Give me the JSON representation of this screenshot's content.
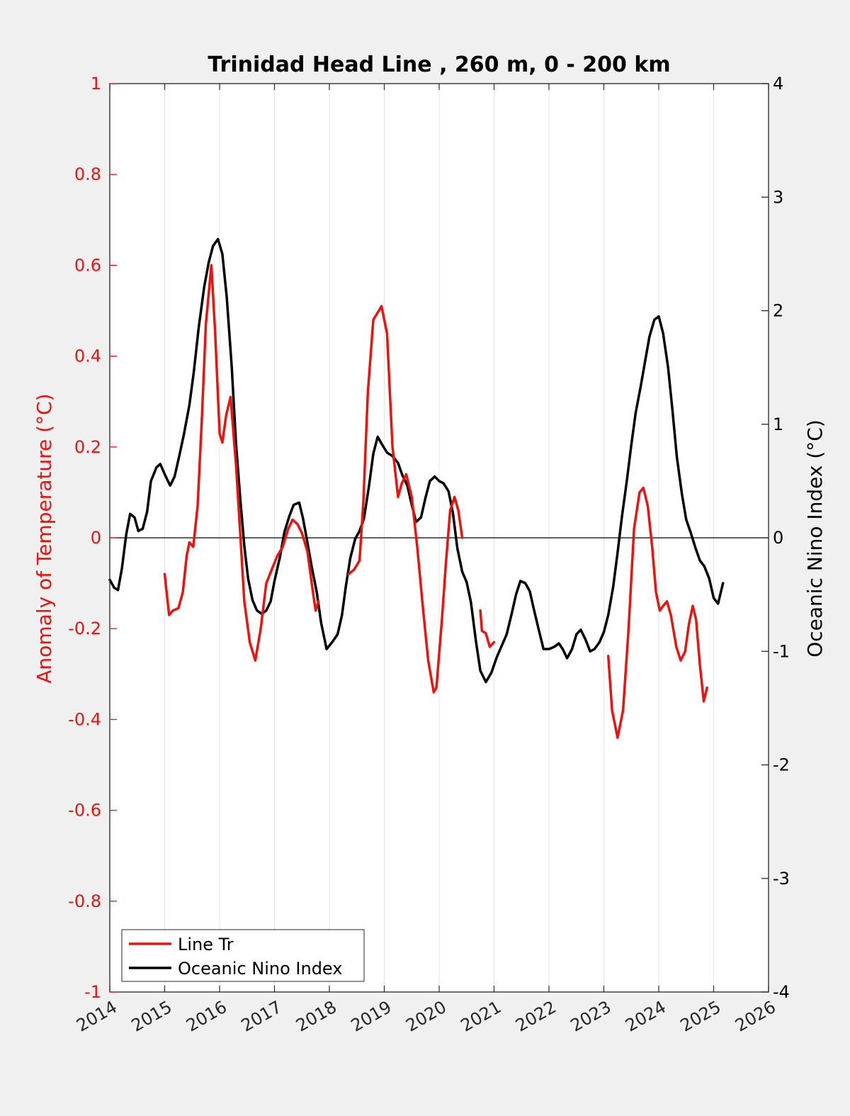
{
  "chart_data": {
    "type": "line",
    "title": "Trinidad Head Line , 260 m, 0 - 200 km",
    "ylabel_left": "Anomaly of Temperature (°C)",
    "ylabel_right": "Oceanic Nino Index (°C)",
    "xlabel": "",
    "xlim": [
      2014,
      2026
    ],
    "ylim_left": [
      -1,
      1
    ],
    "ylim_right": [
      -4,
      4
    ],
    "x_ticks": [
      "2014",
      "2015",
      "2016",
      "2017",
      "2018",
      "2019",
      "2020",
      "2021",
      "2022",
      "2023",
      "2024",
      "2025",
      "2026"
    ],
    "y_ticks_left": [
      "1",
      "0.8",
      "0.6",
      "0.4",
      "0.2",
      "0",
      "-0.2",
      "-0.4",
      "-0.6",
      "-0.8",
      "-1"
    ],
    "y_ticks_right": [
      "4",
      "3",
      "2",
      "1",
      "0",
      "-1",
      "-2",
      "-3",
      "-4"
    ],
    "grid": "vertical",
    "zero_line": true,
    "legend_position": "bottom-left",
    "colors": {
      "line_tr": "#e8140f",
      "oni": "#000000",
      "left_axis": "#e8140f",
      "right_axis": "#000000"
    },
    "series": [
      {
        "name": "Line Tr",
        "axis": "left",
        "color": "#e8140f",
        "segments": [
          [
            [
              2015.0,
              -0.08
            ],
            [
              2015.08,
              -0.17
            ],
            [
              2015.15,
              -0.16
            ],
            [
              2015.25,
              -0.155
            ],
            [
              2015.33,
              -0.12
            ],
            [
              2015.4,
              -0.04
            ],
            [
              2015.45,
              -0.01
            ],
            [
              2015.52,
              -0.02
            ],
            [
              2015.6,
              0.07
            ],
            [
              2015.68,
              0.27
            ],
            [
              2015.75,
              0.47
            ],
            [
              2015.85,
              0.6
            ],
            [
              2015.92,
              0.45
            ],
            [
              2016.0,
              0.23
            ],
            [
              2016.05,
              0.21
            ],
            [
              2016.12,
              0.27
            ],
            [
              2016.2,
              0.31
            ],
            [
              2016.3,
              0.16
            ],
            [
              2016.38,
              0.0
            ],
            [
              2016.45,
              -0.14
            ],
            [
              2016.55,
              -0.23
            ],
            [
              2016.65,
              -0.27
            ],
            [
              2016.75,
              -0.2
            ],
            [
              2016.85,
              -0.1
            ],
            [
              2016.95,
              -0.07
            ],
            [
              2017.05,
              -0.04
            ],
            [
              2017.15,
              -0.02
            ],
            [
              2017.25,
              0.02
            ],
            [
              2017.33,
              0.04
            ],
            [
              2017.42,
              0.03
            ],
            [
              2017.5,
              0.01
            ],
            [
              2017.6,
              -0.03
            ],
            [
              2017.7,
              -0.12
            ],
            [
              2017.75,
              -0.16
            ],
            [
              2017.8,
              -0.14
            ]
          ],
          [
            [
              2018.35,
              -0.08
            ],
            [
              2018.45,
              -0.07
            ],
            [
              2018.55,
              -0.05
            ],
            [
              2018.62,
              0.08
            ],
            [
              2018.7,
              0.32
            ],
            [
              2018.8,
              0.48
            ],
            [
              2018.9,
              0.5
            ],
            [
              2018.95,
              0.51
            ],
            [
              2019.05,
              0.45
            ],
            [
              2019.15,
              0.2
            ],
            [
              2019.25,
              0.09
            ],
            [
              2019.32,
              0.12
            ],
            [
              2019.4,
              0.14
            ],
            [
              2019.5,
              0.09
            ],
            [
              2019.6,
              -0.02
            ],
            [
              2019.7,
              -0.15
            ],
            [
              2019.8,
              -0.27
            ],
            [
              2019.9,
              -0.34
            ],
            [
              2019.95,
              -0.33
            ],
            [
              2020.05,
              -0.18
            ],
            [
              2020.12,
              -0.06
            ],
            [
              2020.2,
              0.06
            ],
            [
              2020.28,
              0.09
            ],
            [
              2020.35,
              0.06
            ],
            [
              2020.42,
              0.0
            ]
          ],
          [
            [
              2020.75,
              -0.16
            ],
            [
              2020.78,
              -0.205
            ],
            [
              2020.85,
              -0.21
            ],
            [
              2020.92,
              -0.24
            ],
            [
              2021.0,
              -0.23
            ]
          ],
          [
            [
              2023.08,
              -0.26
            ],
            [
              2023.15,
              -0.38
            ],
            [
              2023.25,
              -0.44
            ],
            [
              2023.35,
              -0.38
            ],
            [
              2023.45,
              -0.2
            ],
            [
              2023.55,
              0.02
            ],
            [
              2023.65,
              0.1
            ],
            [
              2023.72,
              0.11
            ],
            [
              2023.8,
              0.07
            ],
            [
              2023.88,
              -0.02
            ],
            [
              2023.95,
              -0.12
            ],
            [
              2024.02,
              -0.16
            ],
            [
              2024.08,
              -0.15
            ],
            [
              2024.15,
              -0.14
            ],
            [
              2024.22,
              -0.17
            ],
            [
              2024.32,
              -0.24
            ],
            [
              2024.4,
              -0.27
            ],
            [
              2024.48,
              -0.25
            ],
            [
              2024.55,
              -0.19
            ],
            [
              2024.62,
              -0.15
            ],
            [
              2024.68,
              -0.18
            ],
            [
              2024.75,
              -0.28
            ],
            [
              2024.82,
              -0.36
            ],
            [
              2024.88,
              -0.33
            ]
          ]
        ]
      },
      {
        "name": "Oceanic Nino Index",
        "axis": "right",
        "color": "#000000",
        "points": [
          [
            2014.0,
            -0.37
          ],
          [
            2014.08,
            -0.44
          ],
          [
            2014.15,
            -0.46
          ],
          [
            2014.22,
            -0.27
          ],
          [
            2014.3,
            0.03
          ],
          [
            2014.37,
            0.21
          ],
          [
            2014.45,
            0.18
          ],
          [
            2014.52,
            0.06
          ],
          [
            2014.6,
            0.08
          ],
          [
            2014.68,
            0.23
          ],
          [
            2014.75,
            0.5
          ],
          [
            2014.85,
            0.62
          ],
          [
            2014.92,
            0.65
          ],
          [
            2015.0,
            0.56
          ],
          [
            2015.1,
            0.46
          ],
          [
            2015.18,
            0.54
          ],
          [
            2015.27,
            0.73
          ],
          [
            2015.35,
            0.91
          ],
          [
            2015.45,
            1.17
          ],
          [
            2015.53,
            1.46
          ],
          [
            2015.62,
            1.85
          ],
          [
            2015.72,
            2.21
          ],
          [
            2015.8,
            2.42
          ],
          [
            2015.88,
            2.57
          ],
          [
            2015.97,
            2.63
          ],
          [
            2016.05,
            2.5
          ],
          [
            2016.13,
            2.12
          ],
          [
            2016.22,
            1.51
          ],
          [
            2016.3,
            0.83
          ],
          [
            2016.38,
            0.32
          ],
          [
            2016.45,
            -0.07
          ],
          [
            2016.52,
            -0.36
          ],
          [
            2016.6,
            -0.55
          ],
          [
            2016.68,
            -0.64
          ],
          [
            2016.77,
            -0.67
          ],
          [
            2016.85,
            -0.64
          ],
          [
            2016.93,
            -0.56
          ],
          [
            2017.0,
            -0.38
          ],
          [
            2017.1,
            -0.17
          ],
          [
            2017.18,
            0.05
          ],
          [
            2017.27,
            0.19
          ],
          [
            2017.35,
            0.29
          ],
          [
            2017.45,
            0.31
          ],
          [
            2017.52,
            0.17
          ],
          [
            2017.6,
            -0.04
          ],
          [
            2017.68,
            -0.26
          ],
          [
            2017.77,
            -0.48
          ],
          [
            2017.85,
            -0.75
          ],
          [
            2017.95,
            -0.98
          ],
          [
            2018.05,
            -0.92
          ],
          [
            2018.15,
            -0.85
          ],
          [
            2018.23,
            -0.68
          ],
          [
            2018.3,
            -0.43
          ],
          [
            2018.38,
            -0.18
          ],
          [
            2018.47,
            -0.01
          ],
          [
            2018.55,
            0.06
          ],
          [
            2018.63,
            0.17
          ],
          [
            2018.72,
            0.45
          ],
          [
            2018.8,
            0.74
          ],
          [
            2018.88,
            0.89
          ],
          [
            2018.95,
            0.83
          ],
          [
            2019.05,
            0.75
          ],
          [
            2019.15,
            0.72
          ],
          [
            2019.25,
            0.66
          ],
          [
            2019.33,
            0.55
          ],
          [
            2019.42,
            0.46
          ],
          [
            2019.5,
            0.29
          ],
          [
            2019.58,
            0.14
          ],
          [
            2019.67,
            0.18
          ],
          [
            2019.75,
            0.35
          ],
          [
            2019.83,
            0.5
          ],
          [
            2019.92,
            0.54
          ],
          [
            2020.0,
            0.5
          ],
          [
            2020.08,
            0.48
          ],
          [
            2020.17,
            0.41
          ],
          [
            2020.25,
            0.22
          ],
          [
            2020.33,
            -0.09
          ],
          [
            2020.42,
            -0.3
          ],
          [
            2020.5,
            -0.39
          ],
          [
            2020.58,
            -0.57
          ],
          [
            2020.67,
            -0.91
          ],
          [
            2020.75,
            -1.17
          ],
          [
            2020.85,
            -1.27
          ],
          [
            2020.95,
            -1.19
          ],
          [
            2021.05,
            -1.05
          ],
          [
            2021.15,
            -0.94
          ],
          [
            2021.23,
            -0.85
          ],
          [
            2021.32,
            -0.67
          ],
          [
            2021.4,
            -0.5
          ],
          [
            2021.48,
            -0.38
          ],
          [
            2021.57,
            -0.4
          ],
          [
            2021.65,
            -0.47
          ],
          [
            2021.73,
            -0.64
          ],
          [
            2021.82,
            -0.82
          ],
          [
            2021.9,
            -0.98
          ],
          [
            2022.0,
            -0.98
          ],
          [
            2022.1,
            -0.96
          ],
          [
            2022.18,
            -0.93
          ],
          [
            2022.25,
            -0.98
          ],
          [
            2022.33,
            -1.06
          ],
          [
            2022.42,
            -0.98
          ],
          [
            2022.5,
            -0.85
          ],
          [
            2022.58,
            -0.81
          ],
          [
            2022.67,
            -0.9
          ],
          [
            2022.75,
            -1.0
          ],
          [
            2022.83,
            -0.98
          ],
          [
            2022.92,
            -0.92
          ],
          [
            2023.0,
            -0.83
          ],
          [
            2023.08,
            -0.68
          ],
          [
            2023.17,
            -0.43
          ],
          [
            2023.25,
            -0.13
          ],
          [
            2023.33,
            0.19
          ],
          [
            2023.42,
            0.51
          ],
          [
            2023.5,
            0.82
          ],
          [
            2023.58,
            1.1
          ],
          [
            2023.67,
            1.33
          ],
          [
            2023.75,
            1.55
          ],
          [
            2023.83,
            1.77
          ],
          [
            2023.92,
            1.92
          ],
          [
            2024.0,
            1.95
          ],
          [
            2024.08,
            1.8
          ],
          [
            2024.17,
            1.5
          ],
          [
            2024.25,
            1.12
          ],
          [
            2024.33,
            0.71
          ],
          [
            2024.42,
            0.39
          ],
          [
            2024.5,
            0.16
          ],
          [
            2024.58,
            0.05
          ],
          [
            2024.67,
            -0.09
          ],
          [
            2024.75,
            -0.2
          ],
          [
            2024.83,
            -0.25
          ],
          [
            2024.92,
            -0.36
          ],
          [
            2025.0,
            -0.53
          ],
          [
            2025.08,
            -0.58
          ],
          [
            2025.17,
            -0.4
          ]
        ]
      }
    ]
  }
}
